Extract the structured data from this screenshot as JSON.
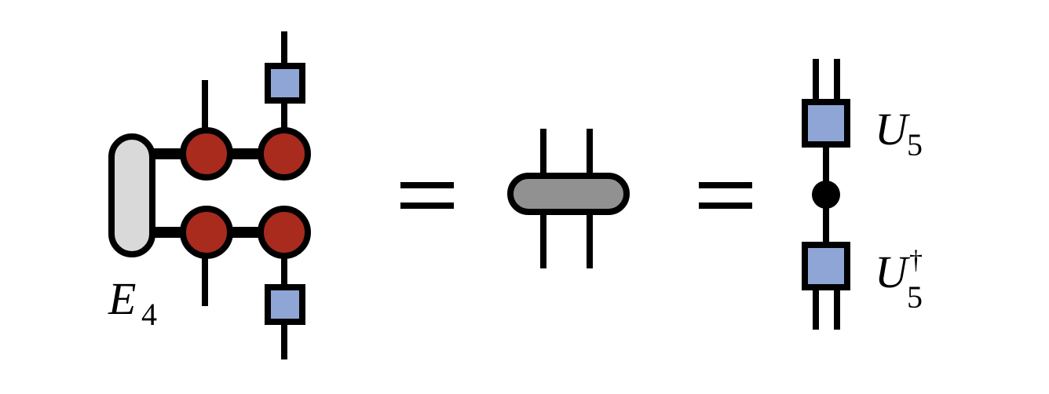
{
  "colors": {
    "stroke": "#000000",
    "environment": "#d9d9d9",
    "site_tensor": "#a82b1e",
    "unitary": "#8ea5d5",
    "contracted": "#919191",
    "node": "#000000"
  },
  "labels": {
    "E": {
      "base": "E",
      "sub": "4"
    },
    "U_top": {
      "base": "U",
      "sub": "5"
    },
    "U_bottom": {
      "base": "U",
      "sup": "†",
      "sub": "5"
    }
  },
  "equals_count": 2
}
